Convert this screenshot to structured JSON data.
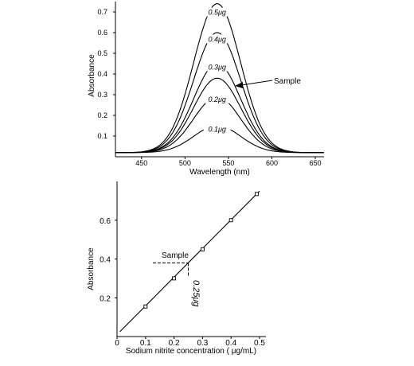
{
  "chart_data": [
    {
      "type": "line",
      "title": "",
      "xlabel": "Wavelength (nm)",
      "ylabel": "Absorbance",
      "xlim": [
        420,
        660
      ],
      "ylim": [
        0,
        0.75
      ],
      "x_ticks": [
        450,
        500,
        550,
        600,
        650
      ],
      "y_ticks": [
        0.1,
        0.2,
        0.3,
        0.4,
        0.5,
        0.6,
        0.7
      ],
      "peak_wavelength": 537,
      "series": [
        {
          "name": "0.1μg",
          "peak": 0.15
        },
        {
          "name": "0.2μg",
          "peak": 0.29
        },
        {
          "name": "0.25μg",
          "peak": 0.38
        },
        {
          "name": "0.3μg",
          "peak": 0.45
        },
        {
          "name": "0.4μg",
          "peak": 0.6
        },
        {
          "name": "0.5μg",
          "peak": 0.74
        }
      ],
      "curve_labels": [
        {
          "text": "0.5μg",
          "value": 0.69
        },
        {
          "text": "0.4μg",
          "value": 0.56
        },
        {
          "text": "0.3μg",
          "value": 0.425
        },
        {
          "text": "0.2μg",
          "value": 0.27
        },
        {
          "text": "0.1μg",
          "value": 0.125
        }
      ],
      "annotation": {
        "text": "Sample",
        "target_series": "0.25μg"
      }
    },
    {
      "type": "scatter",
      "title": "",
      "xlabel": "Sodium nitrite concentration ( μg/mL)",
      "ylabel": "Absorbance",
      "xlim": [
        0,
        0.5
      ],
      "ylim": [
        0,
        0.8
      ],
      "x_ticks": [
        0,
        0.1,
        0.2,
        0.3,
        0.4,
        0.5
      ],
      "y_ticks": [
        0.2,
        0.4,
        0.6
      ],
      "points": [
        {
          "x": 0.1,
          "y": 0.155
        },
        {
          "x": 0.2,
          "y": 0.3
        },
        {
          "x": 0.3,
          "y": 0.45
        },
        {
          "x": 0.4,
          "y": 0.6
        },
        {
          "x": 0.49,
          "y": 0.735
        }
      ],
      "fit_line": {
        "x": [
          0.01,
          0.5
        ],
        "y": [
          0.025,
          0.75
        ]
      },
      "sample": {
        "x": 0.25,
        "y": 0.38,
        "label": "Sample",
        "value_label": "0.25μg"
      }
    }
  ]
}
